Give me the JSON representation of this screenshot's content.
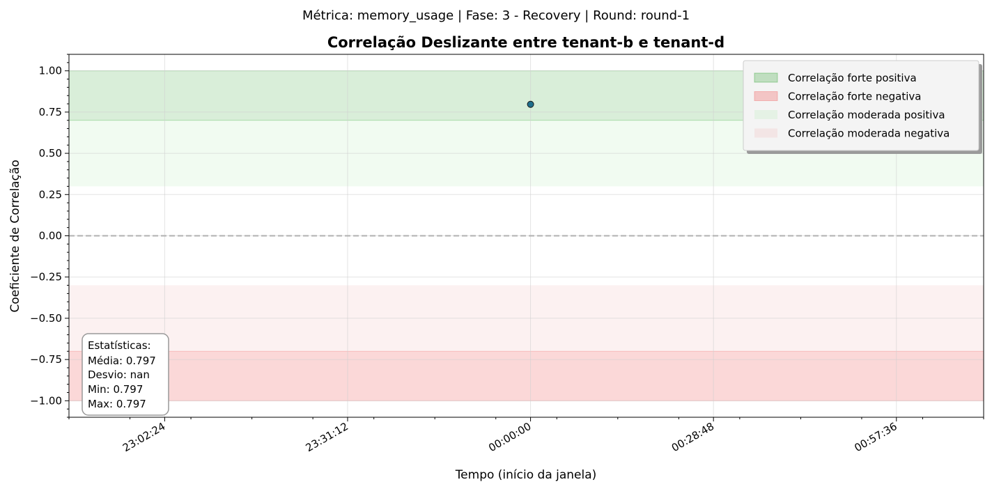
{
  "suptitle": "Métrica: memory_usage | Fase: 3 - Recovery | Round: round-1",
  "colors": {
    "strong_positive": "#2ca02c",
    "strong_negative": "#f06a6a",
    "moderate_positive": "#c8f0c8",
    "moderate_negative": "#f4c8c8",
    "point": "#1f6e8c",
    "zero_line": "#b0b0b0"
  },
  "chart_data": {
    "type": "scatter",
    "title": "Correlação Deslizante entre tenant-b e tenant-d",
    "xlabel": "Tempo (início da janela)",
    "ylabel": "Coeficiente de Correlação",
    "ylim": [
      -1.1,
      1.1
    ],
    "xlim": [
      "22:47:20",
      "01:11:20"
    ],
    "x_ticks": [
      "23:02:24",
      "23:31:12",
      "00:00:00",
      "00:28:48",
      "00:57:36"
    ],
    "y_ticks": [
      "1.00",
      "0.75",
      "0.50",
      "0.25",
      "0.00",
      "−0.25",
      "−0.50",
      "−0.75",
      "−1.00"
    ],
    "grid": true,
    "bands": [
      {
        "label": "Correlação forte positiva",
        "from": 0.7,
        "to": 1.0,
        "color_key": "strong_positive"
      },
      {
        "label": "Correlação forte negativa",
        "from": -1.0,
        "to": -0.7,
        "color_key": "strong_negative"
      },
      {
        "label": "Correlação moderada positiva",
        "from": 0.3,
        "to": 0.7,
        "color_key": "moderate_positive"
      },
      {
        "label": "Correlação moderada negativa",
        "from": -0.7,
        "to": -0.3,
        "color_key": "moderate_negative"
      }
    ],
    "zero_line": 0,
    "points": [
      {
        "x": "00:00:00",
        "y": 0.797
      }
    ],
    "legend_position": "top-right",
    "stats_box": {
      "heading": "Estatísticas:",
      "mean": "Média: 0.797",
      "std": "Desvio: nan",
      "min": "Min: 0.797",
      "max": "Max: 0.797"
    }
  }
}
